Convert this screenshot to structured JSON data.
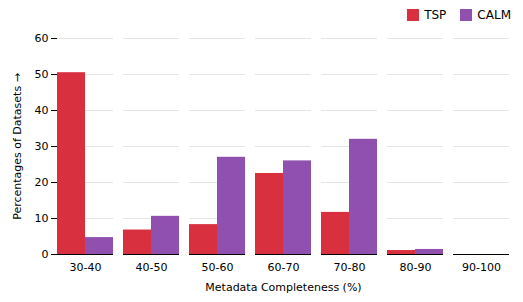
{
  "chart_data": {
    "type": "bar",
    "categories": [
      "30-40",
      "40-50",
      "50-60",
      "60-70",
      "70-80",
      "80-90",
      "90-100"
    ],
    "series": [
      {
        "name": "TSP",
        "color": "#d93040",
        "values": [
          50.5,
          6.8,
          8.3,
          22.5,
          11.7,
          1.1,
          0
        ]
      },
      {
        "name": "CALM",
        "color": "#9050b0",
        "values": [
          4.7,
          10.6,
          27.0,
          26.0,
          32.0,
          1.4,
          0
        ]
      }
    ],
    "xlabel": "Metadata Completeness (%)",
    "ylabel": "Percentages of Datasets",
    "ylim": [
      0,
      60
    ],
    "yticks": [
      0,
      10,
      20,
      30,
      40,
      50,
      60
    ],
    "grid": true,
    "legend": "upper right"
  }
}
